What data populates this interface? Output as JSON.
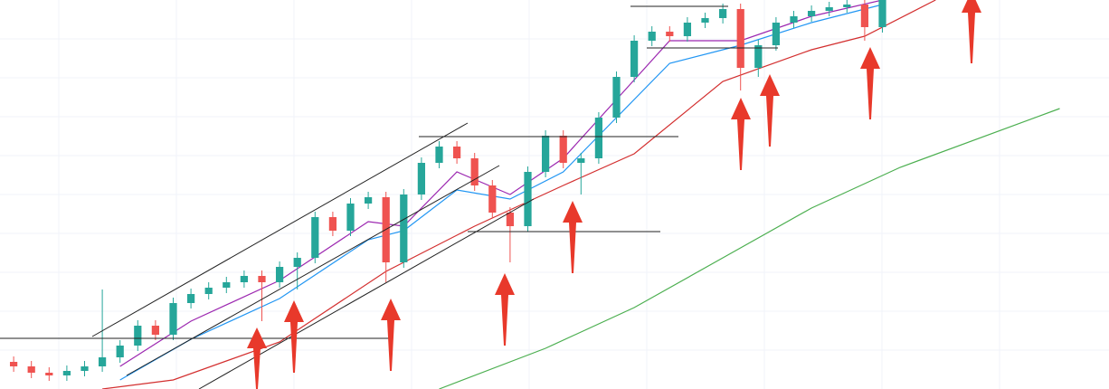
{
  "chart_data": {
    "type": "candlestick",
    "x": [
      0,
      1,
      2,
      3,
      4,
      5,
      6,
      7,
      8,
      9,
      10,
      11,
      12,
      13,
      14,
      15,
      16,
      17,
      18,
      19,
      20,
      21,
      22,
      23,
      24,
      25,
      26,
      27,
      28,
      29,
      30,
      31,
      32,
      33,
      34,
      35,
      36,
      37,
      38,
      39,
      40,
      41,
      42,
      43,
      44,
      45,
      46,
      47,
      48,
      49
    ],
    "open": [
      30,
      25,
      18,
      15,
      20,
      25,
      35,
      48,
      70,
      60,
      95,
      105,
      112,
      118,
      125,
      118,
      135,
      145,
      190,
      175,
      205,
      212,
      140,
      215,
      250,
      268,
      255,
      225,
      195,
      180,
      240,
      280,
      250,
      255,
      300,
      345,
      385,
      395,
      390,
      405,
      410,
      420,
      355,
      380,
      405,
      412,
      418,
      422,
      425,
      400
    ],
    "high": [
      36,
      31,
      24,
      26,
      31,
      110,
      54,
      76,
      76,
      101,
      111,
      118,
      124,
      131,
      131,
      141,
      151,
      196,
      196,
      211,
      218,
      218,
      221,
      256,
      274,
      274,
      261,
      231,
      201,
      246,
      286,
      286,
      261,
      306,
      351,
      391,
      401,
      401,
      411,
      416,
      426,
      426,
      386,
      411,
      418,
      424,
      428,
      431,
      431,
      436
    ],
    "low": [
      19,
      12,
      9,
      9,
      14,
      19,
      29,
      42,
      54,
      54,
      89,
      99,
      106,
      112,
      75,
      112,
      110,
      139,
      169,
      169,
      199,
      118,
      134,
      209,
      244,
      249,
      219,
      189,
      140,
      174,
      234,
      244,
      215,
      249,
      294,
      339,
      379,
      384,
      384,
      399,
      404,
      330,
      345,
      374,
      399,
      406,
      412,
      416,
      385,
      394
    ],
    "close": [
      25,
      18,
      15,
      20,
      25,
      35,
      48,
      70,
      60,
      95,
      105,
      112,
      118,
      125,
      118,
      135,
      145,
      190,
      175,
      205,
      212,
      140,
      215,
      250,
      268,
      255,
      225,
      195,
      180,
      240,
      280,
      250,
      255,
      300,
      345,
      385,
      395,
      390,
      405,
      410,
      420,
      355,
      380,
      405,
      412,
      418,
      422,
      425,
      400,
      430
    ],
    "up_color": "#26a69a",
    "down_color": "#ef5350",
    "xlim": [
      -0.77,
      61.78
    ],
    "ylim": [
      0,
      430
    ],
    "overlays": [
      {
        "type": "line",
        "color": "#9c27b0",
        "x": [
          6,
          10,
          15,
          20,
          22,
          25,
          28,
          31,
          34,
          37,
          41,
          45,
          49
        ],
        "values": [
          25,
          75,
          120,
          185,
          180,
          240,
          215,
          255,
          320,
          385,
          385,
          412,
          430
        ]
      },
      {
        "type": "line",
        "color": "#2196f3",
        "x": [
          6,
          10,
          15,
          20,
          22,
          25,
          28,
          31,
          34,
          37,
          41,
          45,
          49
        ],
        "values": [
          10,
          55,
          100,
          165,
          175,
          220,
          210,
          240,
          300,
          360,
          380,
          405,
          425
        ]
      },
      {
        "type": "line",
        "color": "#d32f2f",
        "x": [
          5,
          9,
          15,
          21,
          26,
          31,
          35,
          40,
          45,
          48,
          52
        ],
        "values": [
          0,
          10,
          52,
          130,
          180,
          225,
          260,
          340,
          375,
          390,
          430
        ]
      },
      {
        "type": "line",
        "color": "#4caf50",
        "x": [
          24,
          30,
          35,
          40,
          45,
          50,
          59
        ],
        "values": [
          0,
          45,
          90,
          145,
          200,
          245,
          310
        ]
      }
    ]
  }
}
